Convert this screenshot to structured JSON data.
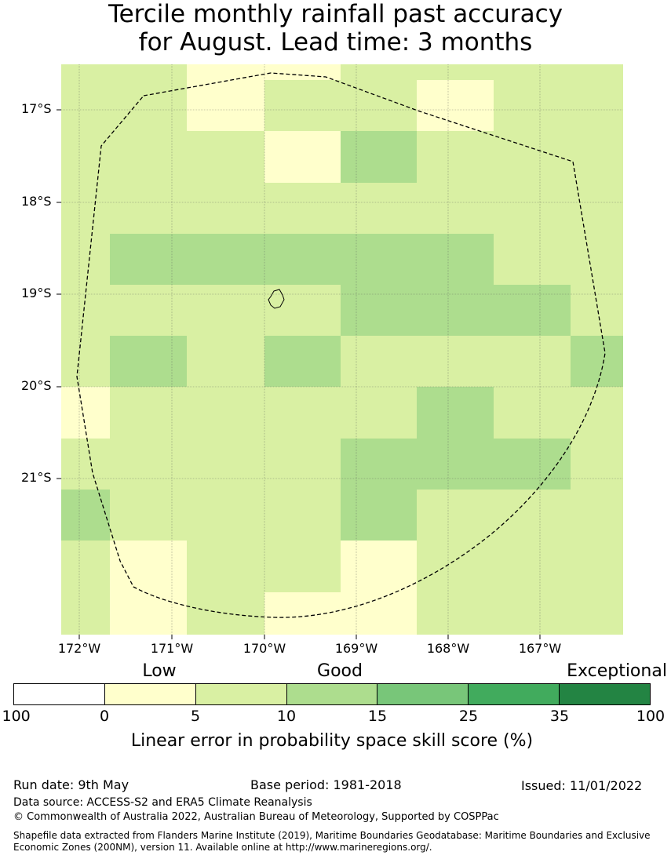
{
  "title": {
    "line1": "Tercile monthly rainfall past accuracy",
    "line2": "for August. Lead time: 3 months"
  },
  "map": {
    "lat_labels": [
      "17°S",
      "18°S",
      "19°S",
      "20°S",
      "21°S"
    ],
    "lon_labels": [
      "172°W",
      "171°W",
      "170°W",
      "169°W",
      "168°W",
      "167°W"
    ],
    "grid_rows_top_to_bottom": [
      [
        "5-10",
        "5-10",
        "0-5",
        "0-5",
        "5-10",
        "5-10",
        "5-10",
        "5-10"
      ],
      [
        "5-10",
        "5-10",
        "0-5",
        "5-10",
        "5-10",
        "0-5",
        "5-10",
        "5-10"
      ],
      [
        "5-10",
        "5-10",
        "5-10",
        "0-5",
        "10-15",
        "5-10",
        "5-10",
        "5-10"
      ],
      [
        "5-10",
        "5-10",
        "5-10",
        "5-10",
        "5-10",
        "5-10",
        "5-10",
        "5-10"
      ],
      [
        "5-10",
        "10-15",
        "10-15",
        "10-15",
        "10-15",
        "10-15",
        "5-10",
        "5-10"
      ],
      [
        "5-10",
        "5-10",
        "5-10",
        "5-10",
        "10-15",
        "10-15",
        "10-15",
        "5-10"
      ],
      [
        "5-10",
        "10-15",
        "5-10",
        "10-15",
        "5-10",
        "5-10",
        "5-10",
        "10-15"
      ],
      [
        "0-5",
        "5-10",
        "5-10",
        "5-10",
        "5-10",
        "10-15",
        "5-10",
        "5-10"
      ],
      [
        "5-10",
        "5-10",
        "5-10",
        "5-10",
        "10-15",
        "10-15",
        "10-15",
        "5-10"
      ],
      [
        "10-15",
        "5-10",
        "5-10",
        "5-10",
        "10-15",
        "5-10",
        "5-10",
        "5-10"
      ],
      [
        "5-10",
        "0-5",
        "5-10",
        "5-10",
        "0-5",
        "5-10",
        "5-10",
        "5-10"
      ],
      [
        "5-10",
        "0-5",
        "5-10",
        "0-5",
        "0-5",
        "5-10",
        "5-10",
        "5-10"
      ]
    ]
  },
  "legend": {
    "categories": [
      "Low",
      "Good",
      "Exceptional"
    ],
    "tick_labels": [
      "100",
      "0",
      "5",
      "10",
      "15",
      "25",
      "35",
      "100"
    ],
    "colors": [
      "#ffffff",
      "#ffffcc",
      "#d9f0a3",
      "#addd8e",
      "#78c679",
      "#41ab5d",
      "#238443"
    ],
    "title": "Linear error in probability space skill score (%)"
  },
  "colors": {
    "0-5": "#ffffcc",
    "5-10": "#d9f0a3",
    "10-15": "#addd8e"
  },
  "footer": {
    "run_date": "Run date: 9th May",
    "base_period": "Base period: 1981-2018",
    "issued": "Issued: 11/01/2022",
    "data_source": "Data source: ACCESS-S2 and ERA5 Climate Reanalysis",
    "copyright": "© Commonwealth of Australia 2022, Australian Bureau of Meteorology, Supported by COSPPac",
    "shapefile_line1": "Shapefile data extracted from Flanders Marine Institute (2019), Maritime Boundaries Geodatabase: Maritime Boundaries and Exclusive",
    "shapefile_line2": "Economic Zones (200NM), version 11. Available online at http://www.marineregions.org/."
  }
}
